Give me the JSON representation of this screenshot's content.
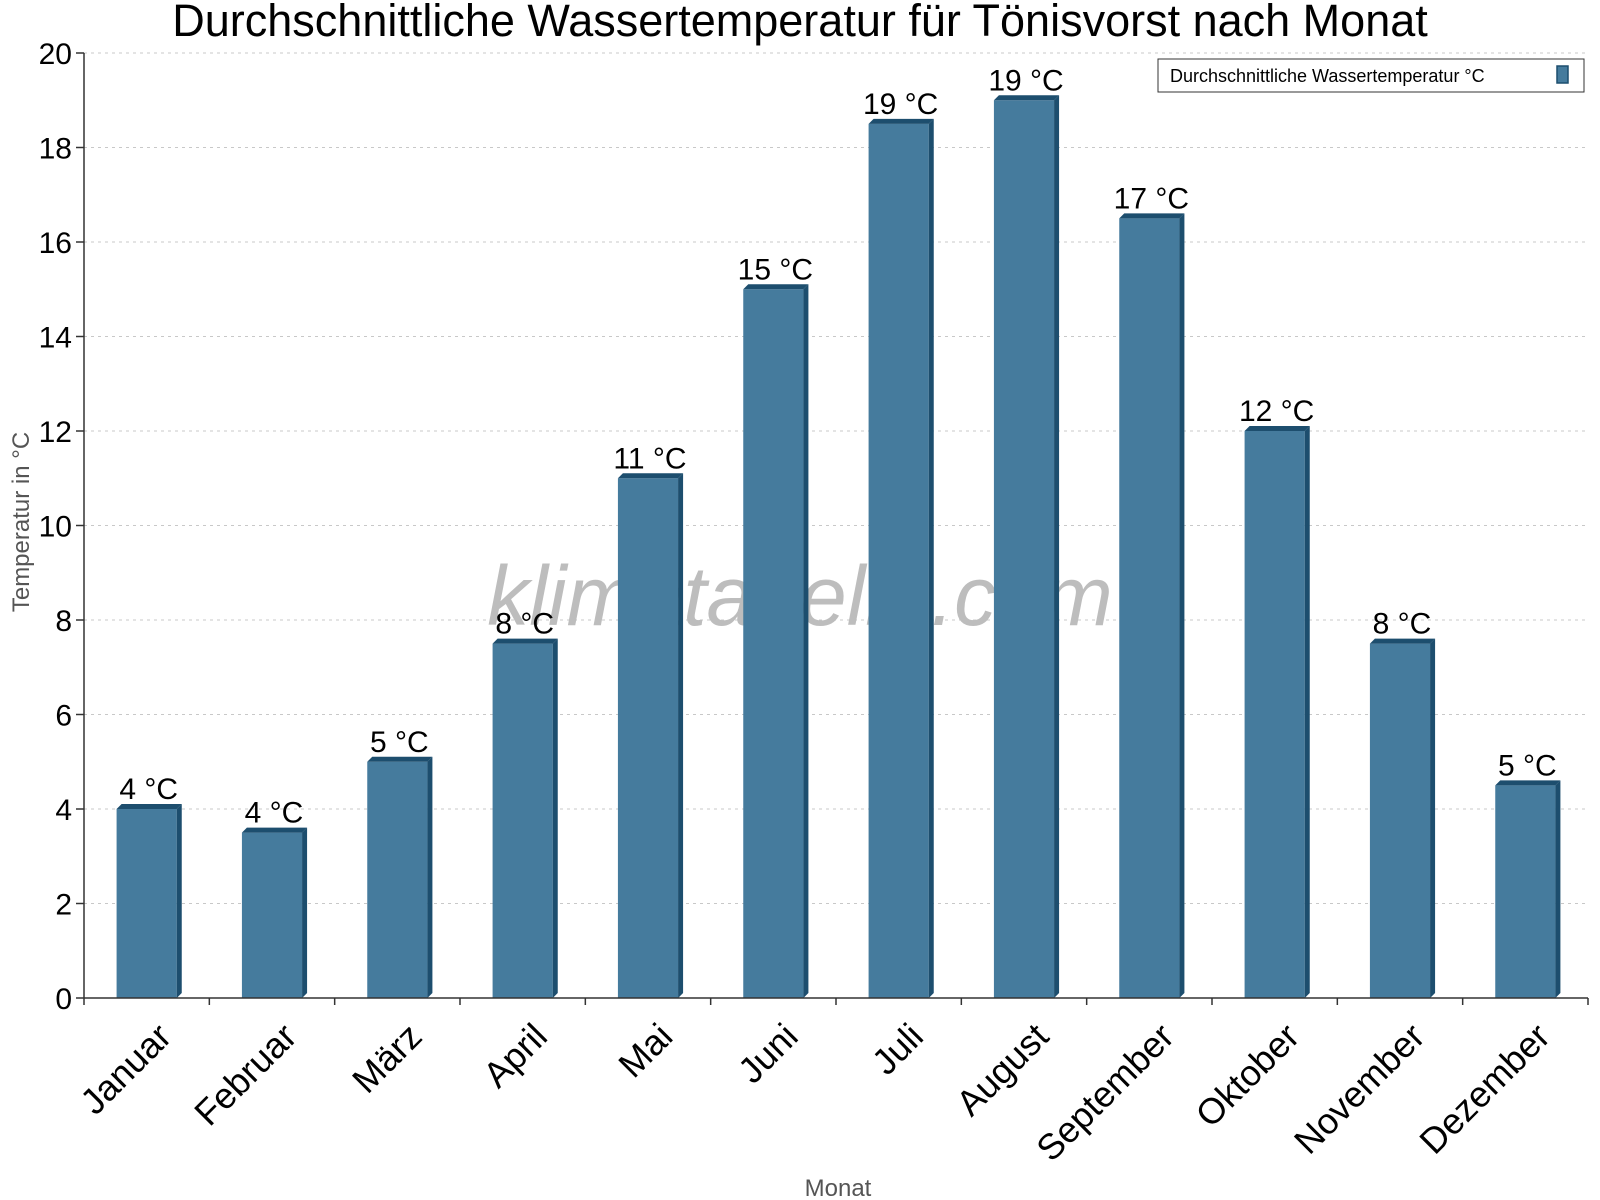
{
  "chart_data": {
    "type": "bar",
    "title": "Durchschnittliche Wassertemperatur für Tönisvorst nach Monat",
    "xlabel": "Monat",
    "ylabel": "Temperatur in °C",
    "ylim": [
      0,
      20
    ],
    "yticks": [
      0,
      2,
      4,
      6,
      8,
      10,
      12,
      14,
      16,
      18,
      20
    ],
    "grid": true,
    "legend_position": "top-right",
    "watermark": "klimatabelle.com",
    "categories": [
      "Januar",
      "Februar",
      "März",
      "April",
      "Mai",
      "Juni",
      "Juli",
      "August",
      "September",
      "Oktober",
      "November",
      "Dezember"
    ],
    "series": [
      {
        "name": "Durchschnittliche Wassertemperatur °C",
        "values": [
          4,
          3.5,
          5,
          7.5,
          11,
          15,
          18.5,
          19,
          16.5,
          12,
          7.5,
          4.5
        ],
        "labels": [
          "4 °C",
          "4 °C",
          "5 °C",
          "8 °C",
          "11 °C",
          "15 °C",
          "19 °C",
          "19 °C",
          "17 °C",
          "12 °C",
          "8 °C",
          "5 °C"
        ],
        "color": "#457b9d",
        "side_color": "#1d4e6e"
      }
    ]
  }
}
